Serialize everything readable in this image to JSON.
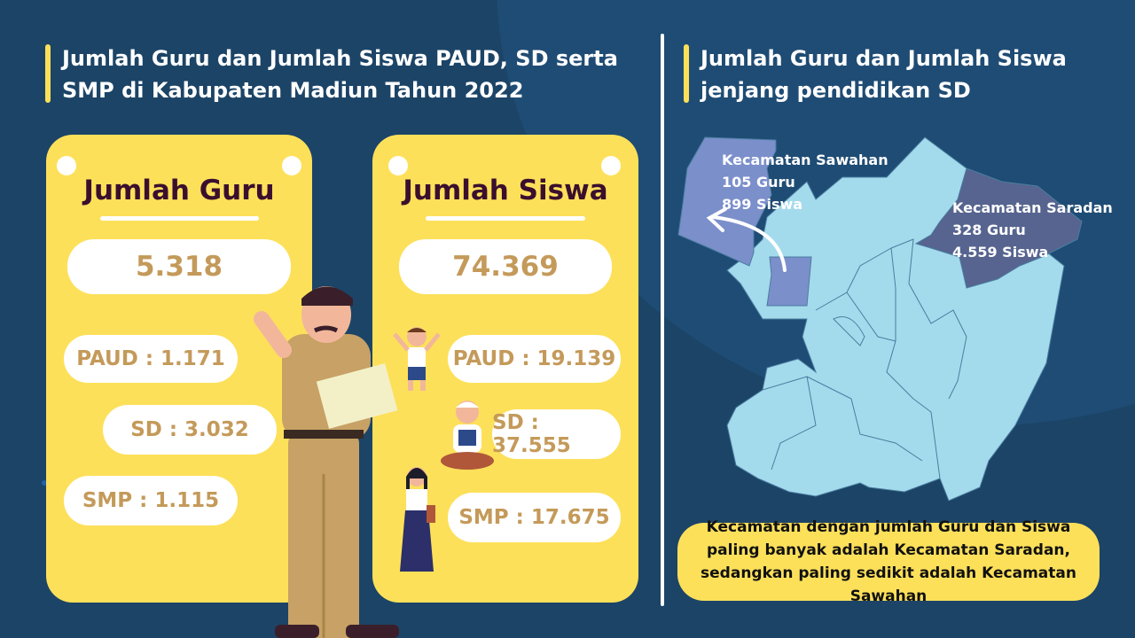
{
  "left": {
    "title": "Jumlah Guru dan Jumlah Siswa PAUD, SD serta SMP di Kabupaten Madiun Tahun 2022",
    "guru_card": {
      "heading": "Jumlah Guru",
      "total": "5.318",
      "paud": "PAUD : 1.171",
      "sd": "SD : 3.032",
      "smp": "SMP : 1.115"
    },
    "siswa_card": {
      "heading": "Jumlah Siswa",
      "total": "74.369",
      "paud": "PAUD : 19.139",
      "sd": "SD : 37.555",
      "smp": "SMP : 17.675"
    }
  },
  "right": {
    "title": "Jumlah Guru dan Jumlah Siswa jenjang pendidikan SD",
    "sawahan": {
      "name": "Kecamatan Sawahan",
      "guru": "105 Guru",
      "siswa": "899 Siswa"
    },
    "saradan": {
      "name": "Kecamatan Saradan",
      "guru": "328 Guru",
      "siswa": "4.559 Siswa"
    },
    "note": "Kecamatan dengan jumlah Guru dan Siswa paling banyak adalah Kecamatan Saradan, sedangkan paling sedikit adalah Kecamatan Sawahan"
  },
  "colors": {
    "background": "#1c4467",
    "accent_yellow": "#fde05a",
    "number_text": "#c49a5a",
    "heading_text": "#3a0f2e",
    "map_base": "#a4dbec",
    "map_sawahan": "#7b8fcb",
    "map_saradan": "#56648f"
  }
}
